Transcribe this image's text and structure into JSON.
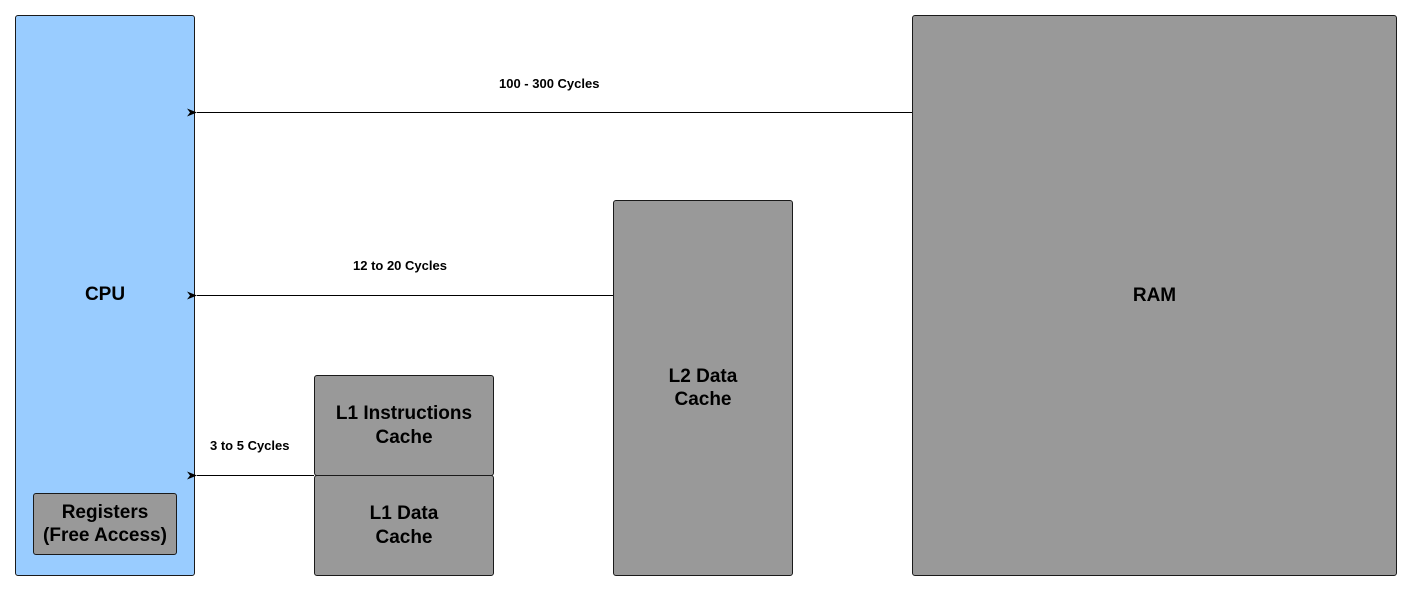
{
  "cpu": {
    "label": "CPU"
  },
  "registers": {
    "line1": "Registers",
    "line2": "(Free Access)"
  },
  "l1_instructions": {
    "line1": "L1 Instructions",
    "line2": "Cache"
  },
  "l1_data": {
    "line1": "L1 Data",
    "line2": "Cache"
  },
  "l2_data": {
    "line1": "L2 Data",
    "line2": "Cache"
  },
  "ram": {
    "label": "RAM"
  },
  "edges": {
    "ram_to_cpu": "100 - 300 Cycles",
    "l2_to_cpu": "12 to 20 Cycles",
    "l1_to_cpu": "3 to 5 Cycles"
  },
  "colors": {
    "cpu_fill": "#99ccff",
    "cache_fill": "#999999",
    "stroke": "#1a1a1a"
  }
}
